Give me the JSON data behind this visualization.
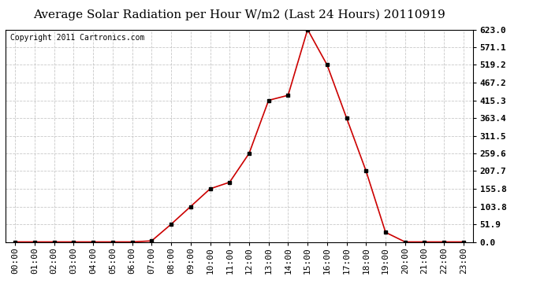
{
  "title": "Average Solar Radiation per Hour W/m2 (Last 24 Hours) 20110919",
  "copyright": "Copyright 2011 Cartronics.com",
  "hours": [
    "00:00",
    "01:00",
    "02:00",
    "03:00",
    "04:00",
    "05:00",
    "06:00",
    "07:00",
    "08:00",
    "09:00",
    "10:00",
    "11:00",
    "12:00",
    "13:00",
    "14:00",
    "15:00",
    "16:00",
    "17:00",
    "18:00",
    "19:00",
    "20:00",
    "21:00",
    "22:00",
    "23:00"
  ],
  "values": [
    0.0,
    0.0,
    0.0,
    0.0,
    0.0,
    0.0,
    0.0,
    3.0,
    51.9,
    103.8,
    155.8,
    175.0,
    259.6,
    415.3,
    430.0,
    623.0,
    519.2,
    363.4,
    207.7,
    28.0,
    0.0,
    0.0,
    0.0,
    0.0
  ],
  "line_color": "#cc0000",
  "marker": "s",
  "marker_color": "#000000",
  "marker_size": 3,
  "background_color": "#ffffff",
  "plot_bg_color": "#ffffff",
  "grid_color": "#bbbbbb",
  "title_fontsize": 11,
  "copyright_fontsize": 7,
  "tick_fontsize": 8,
  "ylim": [
    0.0,
    623.0
  ],
  "yticks": [
    0.0,
    51.9,
    103.8,
    155.8,
    207.7,
    259.6,
    311.5,
    363.4,
    415.3,
    467.2,
    519.2,
    571.1,
    623.0
  ],
  "ytick_labels": [
    "0.0",
    "51.9",
    "103.8",
    "155.8",
    "207.7",
    "259.6",
    "311.5",
    "363.4",
    "415.3",
    "467.2",
    "519.2",
    "571.1",
    "623.0"
  ]
}
